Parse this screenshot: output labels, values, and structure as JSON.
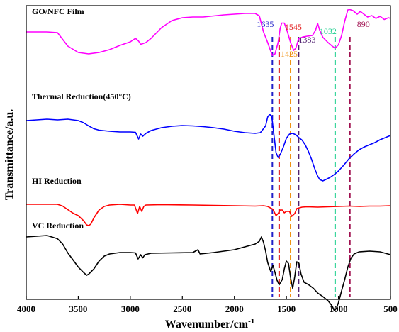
{
  "chart_data": {
    "type": "line",
    "xlabel": "Wavenumber/cm",
    "xlabel_superscript": "-1",
    "ylabel": "Transmittance/a.u.",
    "xlim": [
      4000,
      500
    ],
    "x_reversed": true,
    "y_ticks_shown": false,
    "x_ticks": [
      4000,
      3500,
      3000,
      2500,
      2000,
      1500,
      1000,
      500
    ],
    "series": [
      {
        "name": "GO/NFC Film",
        "color": "#ff00ff",
        "points": [
          [
            4000,
            0
          ],
          [
            3800,
            0
          ],
          [
            3700,
            -0.2
          ],
          [
            3600,
            -4
          ],
          [
            3500,
            -5.8
          ],
          [
            3400,
            -6.2
          ],
          [
            3300,
            -5.8
          ],
          [
            3200,
            -5
          ],
          [
            3100,
            -3.8
          ],
          [
            3000,
            -2.8
          ],
          [
            2950,
            -1.8
          ],
          [
            2920,
            -2.6
          ],
          [
            2900,
            -3.5
          ],
          [
            2850,
            -3
          ],
          [
            2800,
            -1.8
          ],
          [
            2700,
            1.2
          ],
          [
            2600,
            3.2
          ],
          [
            2500,
            4
          ],
          [
            2400,
            4.2
          ],
          [
            2300,
            4.2
          ],
          [
            2200,
            4.5
          ],
          [
            2100,
            4.8
          ],
          [
            2000,
            5
          ],
          [
            1900,
            5.2
          ],
          [
            1800,
            5.2
          ],
          [
            1760,
            4.5
          ],
          [
            1720,
            0
          ],
          [
            1680,
            -3
          ],
          [
            1650,
            -5.5
          ],
          [
            1635,
            -6.6
          ],
          [
            1610,
            -6.2
          ],
          [
            1580,
            -3
          ],
          [
            1560,
            1
          ],
          [
            1545,
            2.5
          ],
          [
            1520,
            2.5
          ],
          [
            1490,
            0
          ],
          [
            1460,
            -3
          ],
          [
            1430,
            -5.2
          ],
          [
            1410,
            -4.6
          ],
          [
            1383,
            -2
          ],
          [
            1370,
            -1.8
          ],
          [
            1340,
            -1.4
          ],
          [
            1300,
            -1.2
          ],
          [
            1250,
            -1
          ],
          [
            1220,
            0.5
          ],
          [
            1200,
            2.4
          ],
          [
            1180,
            0.5
          ],
          [
            1150,
            -1.5
          ],
          [
            1100,
            -3
          ],
          [
            1060,
            -4
          ],
          [
            1032,
            -4.6
          ],
          [
            1000,
            -3.6
          ],
          [
            970,
            -1
          ],
          [
            940,
            3
          ],
          [
            910,
            6.2
          ],
          [
            890,
            6.3
          ],
          [
            860,
            6
          ],
          [
            820,
            5
          ],
          [
            790,
            5.8
          ],
          [
            760,
            5.1
          ],
          [
            720,
            4.2
          ],
          [
            680,
            4.6
          ],
          [
            640,
            3.8
          ],
          [
            600,
            4.4
          ],
          [
            560,
            3.5
          ],
          [
            520,
            4
          ],
          [
            500,
            3.8
          ]
        ]
      },
      {
        "name": "Thermal Reduction(450°C)",
        "color": "#0000ff",
        "points": [
          [
            4000,
            0
          ],
          [
            3800,
            0.4
          ],
          [
            3700,
            0.2
          ],
          [
            3600,
            0.4
          ],
          [
            3550,
            0.2
          ],
          [
            3500,
            0
          ],
          [
            3450,
            -0.6
          ],
          [
            3400,
            -1.5
          ],
          [
            3350,
            -2.3
          ],
          [
            3300,
            -2.7
          ],
          [
            3200,
            -3
          ],
          [
            3100,
            -3.2
          ],
          [
            3000,
            -3.2
          ],
          [
            2950,
            -3.3
          ],
          [
            2920,
            -5.2
          ],
          [
            2900,
            -3.8
          ],
          [
            2880,
            -4.4
          ],
          [
            2850,
            -3.6
          ],
          [
            2800,
            -2.8
          ],
          [
            2700,
            -2
          ],
          [
            2600,
            -1.6
          ],
          [
            2500,
            -1.4
          ],
          [
            2400,
            -1.5
          ],
          [
            2300,
            -1.7
          ],
          [
            2200,
            -2
          ],
          [
            2100,
            -2.4
          ],
          [
            2000,
            -3
          ],
          [
            1900,
            -3.4
          ],
          [
            1800,
            -3.6
          ],
          [
            1750,
            -3.4
          ],
          [
            1700,
            -1.5
          ],
          [
            1680,
            1
          ],
          [
            1660,
            1.8
          ],
          [
            1640,
            1
          ],
          [
            1620,
            -4
          ],
          [
            1600,
            -9
          ],
          [
            1580,
            -10.4
          ],
          [
            1560,
            -9.6
          ],
          [
            1530,
            -7.5
          ],
          [
            1500,
            -5
          ],
          [
            1470,
            -3.8
          ],
          [
            1440,
            -3.6
          ],
          [
            1410,
            -4
          ],
          [
            1380,
            -4.8
          ],
          [
            1350,
            -5.5
          ],
          [
            1320,
            -6.8
          ],
          [
            1290,
            -8.6
          ],
          [
            1260,
            -10.8
          ],
          [
            1230,
            -13.4
          ],
          [
            1200,
            -15.6
          ],
          [
            1180,
            -16.6
          ],
          [
            1150,
            -17
          ],
          [
            1120,
            -16.6
          ],
          [
            1080,
            -16
          ],
          [
            1040,
            -15.2
          ],
          [
            1000,
            -14.2
          ],
          [
            950,
            -12.6
          ],
          [
            900,
            -10.8
          ],
          [
            850,
            -9.4
          ],
          [
            800,
            -8.2
          ],
          [
            750,
            -7.4
          ],
          [
            700,
            -6.8
          ],
          [
            650,
            -6.2
          ],
          [
            600,
            -5.4
          ],
          [
            550,
            -4.8
          ],
          [
            500,
            -4.2
          ]
        ]
      },
      {
        "name": "HI Reduction",
        "color": "#ff0000",
        "points": [
          [
            4000,
            0
          ],
          [
            3800,
            0
          ],
          [
            3700,
            0
          ],
          [
            3650,
            -0.5
          ],
          [
            3600,
            -1.5
          ],
          [
            3550,
            -2.5
          ],
          [
            3500,
            -3.2
          ],
          [
            3450,
            -4.6
          ],
          [
            3420,
            -5.8
          ],
          [
            3400,
            -6
          ],
          [
            3380,
            -5.6
          ],
          [
            3350,
            -3.8
          ],
          [
            3300,
            -1.6
          ],
          [
            3250,
            -0.6
          ],
          [
            3200,
            -0.2
          ],
          [
            3100,
            0
          ],
          [
            3000,
            -0.2
          ],
          [
            2960,
            -0.2
          ],
          [
            2930,
            -2.6
          ],
          [
            2910,
            -0.6
          ],
          [
            2890,
            -2
          ],
          [
            2870,
            -0.6
          ],
          [
            2850,
            -0.2
          ],
          [
            2700,
            -0.1
          ],
          [
            2400,
            -0.2
          ],
          [
            2200,
            -0.3
          ],
          [
            2000,
            -0.4
          ],
          [
            1800,
            -0.5
          ],
          [
            1720,
            -0.4
          ],
          [
            1680,
            -0.6
          ],
          [
            1630,
            -1.4
          ],
          [
            1600,
            -3.2
          ],
          [
            1580,
            -2.6
          ],
          [
            1560,
            -1.6
          ],
          [
            1540,
            -1.6
          ],
          [
            1520,
            -2.4
          ],
          [
            1500,
            -2
          ],
          [
            1470,
            -2
          ],
          [
            1450,
            -3.4
          ],
          [
            1420,
            -2.6
          ],
          [
            1400,
            -1.2
          ],
          [
            1350,
            -0.8
          ],
          [
            1300,
            -0.7
          ],
          [
            1200,
            -0.8
          ],
          [
            1100,
            -0.7
          ],
          [
            1000,
            -0.6
          ],
          [
            900,
            -0.5
          ],
          [
            800,
            -0.6
          ],
          [
            700,
            -0.5
          ],
          [
            600,
            -0.5
          ],
          [
            500,
            -0.4
          ]
        ]
      },
      {
        "name": "VC Reduction",
        "color": "#000000",
        "points": [
          [
            4000,
            0
          ],
          [
            3800,
            0.4
          ],
          [
            3700,
            -0.5
          ],
          [
            3650,
            -2
          ],
          [
            3600,
            -4.5
          ],
          [
            3550,
            -6.5
          ],
          [
            3500,
            -8.5
          ],
          [
            3450,
            -10
          ],
          [
            3420,
            -10.8
          ],
          [
            3400,
            -10.5
          ],
          [
            3350,
            -9
          ],
          [
            3300,
            -6.8
          ],
          [
            3250,
            -5.4
          ],
          [
            3200,
            -4.8
          ],
          [
            3100,
            -4.4
          ],
          [
            3000,
            -4.4
          ],
          [
            2950,
            -4.5
          ],
          [
            2925,
            -6.2
          ],
          [
            2900,
            -5
          ],
          [
            2880,
            -5.9
          ],
          [
            2860,
            -5
          ],
          [
            2800,
            -4.6
          ],
          [
            2600,
            -4.5
          ],
          [
            2400,
            -4.4
          ],
          [
            2350,
            -3.6
          ],
          [
            2330,
            -4.8
          ],
          [
            2200,
            -4.4
          ],
          [
            2000,
            -3.6
          ],
          [
            1900,
            -2.8
          ],
          [
            1800,
            -2
          ],
          [
            1760,
            -1.2
          ],
          [
            1740,
            0
          ],
          [
            1720,
            -1.5
          ],
          [
            1700,
            -4
          ],
          [
            1680,
            -7.2
          ],
          [
            1650,
            -9.8
          ],
          [
            1630,
            -8
          ],
          [
            1610,
            -10
          ],
          [
            1590,
            -12.2
          ],
          [
            1570,
            -13.5
          ],
          [
            1540,
            -12
          ],
          [
            1520,
            -9
          ],
          [
            1500,
            -6.8
          ],
          [
            1480,
            -7.5
          ],
          [
            1460,
            -11.5
          ],
          [
            1440,
            -14.5
          ],
          [
            1420,
            -11.2
          ],
          [
            1400,
            -7
          ],
          [
            1380,
            -7.4
          ],
          [
            1360,
            -10.4
          ],
          [
            1330,
            -12.8
          ],
          [
            1290,
            -13.4
          ],
          [
            1240,
            -14.5
          ],
          [
            1200,
            -15.8
          ],
          [
            1150,
            -16.8
          ],
          [
            1100,
            -18
          ],
          [
            1060,
            -19.5
          ],
          [
            1040,
            -20.8
          ],
          [
            1020,
            -20.2
          ],
          [
            1000,
            -18.5
          ],
          [
            970,
            -15.2
          ],
          [
            940,
            -12
          ],
          [
            910,
            -8.5
          ],
          [
            880,
            -6
          ],
          [
            850,
            -4.8
          ],
          [
            800,
            -4.2
          ],
          [
            700,
            -4
          ],
          [
            600,
            -4.2
          ],
          [
            550,
            -4.6
          ],
          [
            500,
            -5
          ]
        ]
      }
    ],
    "peaks": [
      {
        "label": "1635",
        "x": 1635,
        "color": "#2020c8"
      },
      {
        "label": "1545",
        "x": 1570,
        "color": "#e01010"
      },
      {
        "label": "1425",
        "x": 1460,
        "color": "#f09010"
      },
      {
        "label": "1383",
        "x": 1383,
        "color": "#502070"
      },
      {
        "label": "1032",
        "x": 1032,
        "color": "#20d090"
      },
      {
        "label": "890",
        "x": 890,
        "color": "#a01050"
      }
    ]
  }
}
